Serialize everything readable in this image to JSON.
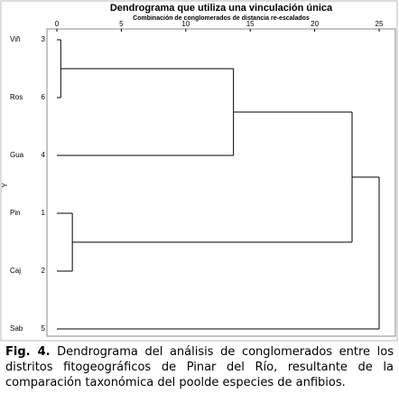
{
  "chart_data": {
    "type": "dendrogram",
    "title": "Dendrograma que utiliza una vinculación única",
    "subtitle": "Combinación de conglomerados de distancia re-escalados",
    "y_label": "Y",
    "leaves": [
      {
        "label": "Viñ",
        "id": 3
      },
      {
        "label": "Ros",
        "id": 6
      },
      {
        "label": "Gua",
        "id": 4
      },
      {
        "label": "Pin",
        "id": 1
      },
      {
        "label": "Caj",
        "id": 2
      },
      {
        "label": "Sab",
        "id": 5
      }
    ],
    "merges": [
      {
        "children": [
          0,
          1
        ],
        "distance": 0.3
      },
      {
        "children": [
          6,
          2
        ],
        "distance": 13.7
      },
      {
        "children": [
          3,
          4
        ],
        "distance": 1.2
      },
      {
        "children": [
          7,
          8
        ],
        "distance": 22.9
      },
      {
        "children": [
          9,
          5
        ],
        "distance": 25
      }
    ],
    "xlim": [
      0,
      25
    ],
    "xticks": [
      0,
      5,
      10,
      15,
      20,
      25
    ],
    "color": "#000000"
  },
  "caption": {
    "label": "Fig. 4.",
    "text": "Dendrograma del análisis de conglomerados entre los distritos fitogeográficos de Pinar del Río, resultante de la comparación taxonómica del poolde especies de anfibios."
  }
}
